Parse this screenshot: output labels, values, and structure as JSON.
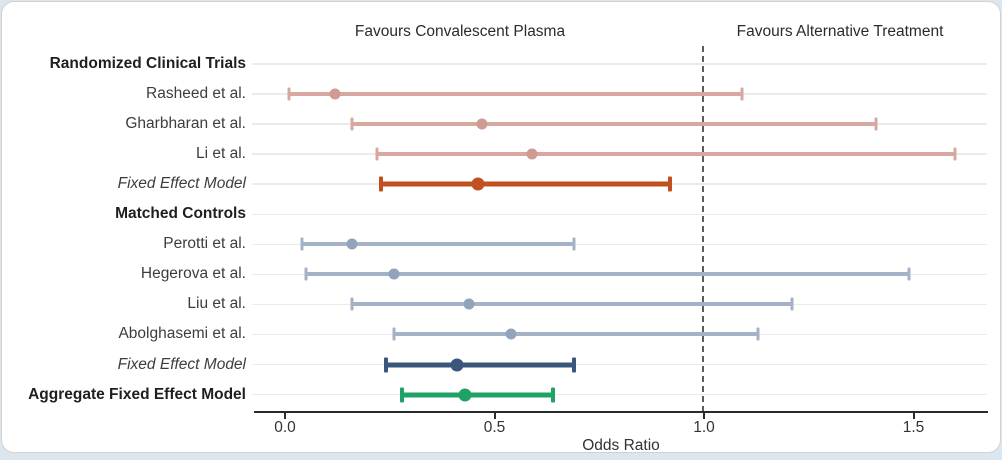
{
  "figure": {
    "top_labels": {
      "left": "Favours Convalescent Plasma",
      "right": "Favours Alternative Treatment"
    },
    "colors": {
      "rct_study_line": "#d7a7a0",
      "rct_study_point": "#cf9a92",
      "rct_summary": "#c1511e",
      "mc_study_line": "#a3b2c6",
      "mc_study_point": "#92a4bc",
      "mc_summary": "#3a567c",
      "agg_summary": "#1fa266",
      "grid": "#ebebeb",
      "reference_line": "#5c5c5c",
      "axis": "#2b2b2b"
    }
  },
  "chart_data": {
    "type": "forest",
    "title": "",
    "xlabel": "Odds Ratio",
    "xlim": [
      -0.08,
      1.68
    ],
    "reference_line": 1.0,
    "grid": true,
    "x_ticks": [
      {
        "value": 0.0,
        "label": "0.0"
      },
      {
        "value": 0.5,
        "label": "0.5"
      },
      {
        "value": 1.0,
        "label": "1.0"
      },
      {
        "value": 1.5,
        "label": "1.5"
      }
    ],
    "annotations": [
      {
        "text": "Favours Convalescent Plasma",
        "x": 0.42,
        "side": "left"
      },
      {
        "text": "Favours Alternative Treatment",
        "x": 1.32,
        "side": "right"
      }
    ],
    "rows": [
      {
        "type": "header",
        "group": "rct",
        "label": "Randomized Clinical Trials"
      },
      {
        "type": "study",
        "group": "rct",
        "label": "Rasheed et al.",
        "or": 0.12,
        "ci_low": 0.01,
        "ci_high": 1.09
      },
      {
        "type": "study",
        "group": "rct",
        "label": "Gharbharan et al.",
        "or": 0.47,
        "ci_low": 0.16,
        "ci_high": 1.41
      },
      {
        "type": "study",
        "group": "rct",
        "label": "Li et al.",
        "or": 0.59,
        "ci_low": 0.22,
        "ci_high": 1.6
      },
      {
        "type": "summary",
        "group": "rct",
        "label": "Fixed Effect Model",
        "or": 0.46,
        "ci_low": 0.23,
        "ci_high": 0.92
      },
      {
        "type": "header",
        "group": "mc",
        "label": "Matched Controls"
      },
      {
        "type": "study",
        "group": "mc",
        "label": "Perotti et al.",
        "or": 0.16,
        "ci_low": 0.04,
        "ci_high": 0.69
      },
      {
        "type": "study",
        "group": "mc",
        "label": "Hegerova et al.",
        "or": 0.26,
        "ci_low": 0.05,
        "ci_high": 1.49
      },
      {
        "type": "study",
        "group": "mc",
        "label": "Liu et al.",
        "or": 0.44,
        "ci_low": 0.16,
        "ci_high": 1.21
      },
      {
        "type": "study",
        "group": "mc",
        "label": "Abolghasemi et al.",
        "or": 0.54,
        "ci_low": 0.26,
        "ci_high": 1.13
      },
      {
        "type": "summary",
        "group": "mc",
        "label": "Fixed Effect Model",
        "or": 0.41,
        "ci_low": 0.24,
        "ci_high": 0.69
      },
      {
        "type": "summary",
        "group": "agg",
        "label": "Aggregate Fixed Effect Model",
        "or": 0.43,
        "ci_low": 0.28,
        "ci_high": 0.64
      }
    ]
  }
}
